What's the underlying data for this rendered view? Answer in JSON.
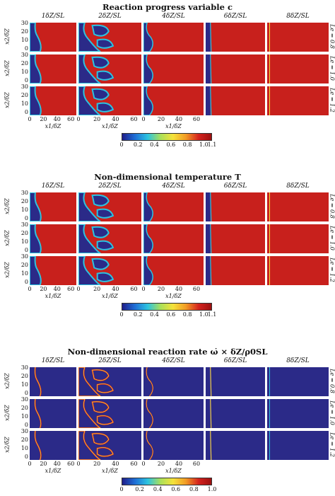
{
  "colors": {
    "red": "#c8201c",
    "blue": "#2b2a88",
    "colormap": [
      "#1f1d8a",
      "#1f6fd6",
      "#2cc3e0",
      "#a9e05a",
      "#f5e23a",
      "#f29b25",
      "#d4231e",
      "#9d1010"
    ]
  },
  "columns": [
    "1δZ/SL",
    "2δZ/SL",
    "4δZ/SL",
    "6δZ/SL",
    "8δZ/SL"
  ],
  "rows": [
    "Le = 0.8",
    "Le = 1.0",
    "Le = 1.2"
  ],
  "yticks": [
    "30",
    "20",
    "10",
    "0"
  ],
  "xticks": [
    "0",
    "20",
    "40",
    "60"
  ],
  "ylabel": "x2/δZ",
  "xlabel": "x1/δZ",
  "figures": [
    {
      "title": "Reaction progress variable c",
      "colorbar_ticks": [
        "0",
        "0.2",
        "0.4",
        "0.6",
        "0.8",
        "1.0",
        "1.1"
      ]
    },
    {
      "title": "Non-dimensional temperature T",
      "colorbar_ticks": [
        "0",
        "0.2",
        "0.4",
        "0.6",
        "0.8",
        "1.0",
        "1.1"
      ]
    },
    {
      "title": "Non-dimensional reaction rate ω̇ × δZ/ρ0SL",
      "colorbar_ticks": [
        "0",
        "0.2",
        "0.4",
        "0.6",
        "0.8",
        "1.0"
      ]
    }
  ]
}
